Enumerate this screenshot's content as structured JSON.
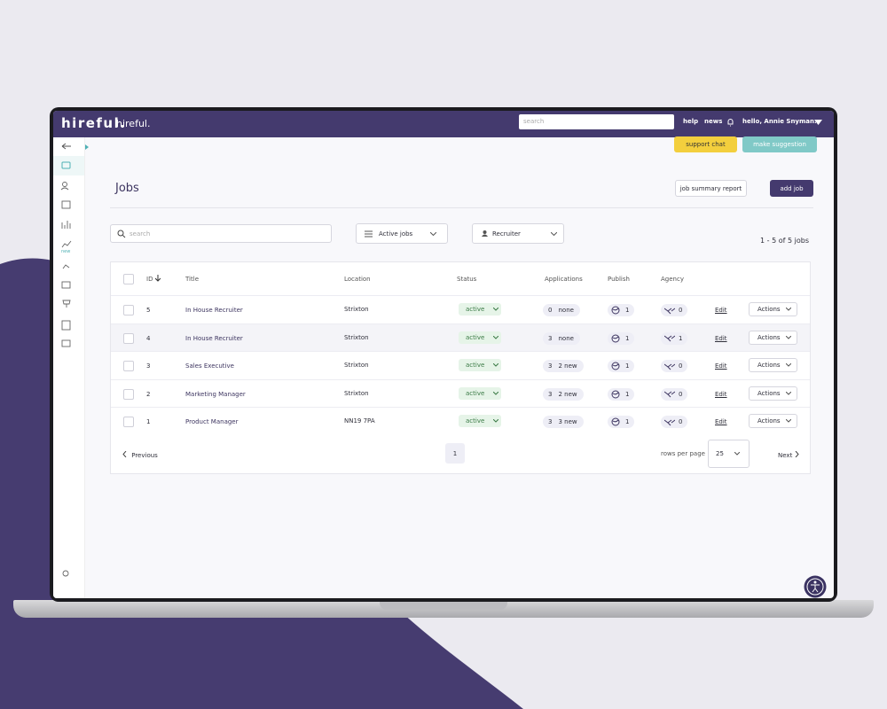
{
  "header": {
    "logo": "hireful.",
    "brand": "hireful.",
    "search_placeholder": "search",
    "help": "help",
    "news": "news",
    "user": "hello, Annie Snyman."
  },
  "sidebar": {
    "new_badge": "new"
  },
  "buttons": {
    "support_chat": "support chat",
    "make_suggestion": "make suggestion",
    "job_summary_report": "job summary report",
    "add_job": "add job"
  },
  "page_title": "Jobs",
  "filters": {
    "search_placeholder": "search",
    "status": "Active jobs",
    "recruiter": "Recruiter",
    "count": "1 - 5 of 5 jobs"
  },
  "table": {
    "columns": [
      "ID",
      "Title",
      "Location",
      "Status",
      "Applications",
      "Publish",
      "Agency"
    ],
    "rows": [
      [
        5,
        "In House Recruiter",
        "Strixton",
        "active",
        0,
        "none",
        1,
        0
      ],
      [
        4,
        "In House Recruiter",
        "Strixton",
        "active",
        3,
        "none",
        1,
        1
      ],
      [
        3,
        "Sales Executive",
        "Strixton",
        "active",
        3,
        "2 new",
        1,
        0
      ],
      [
        2,
        "Marketing Manager",
        "Strixton",
        "active",
        3,
        "2 new",
        1,
        0
      ],
      [
        1,
        "Product Manager",
        "NN19 7PA",
        "active",
        3,
        "3 new",
        1,
        0
      ]
    ],
    "edit": "Edit",
    "actions": "Actions"
  },
  "pagination": {
    "previous": "Previous",
    "page": "1",
    "rows_per_page": "rows per page",
    "page_size": "25",
    "next": "Next"
  }
}
